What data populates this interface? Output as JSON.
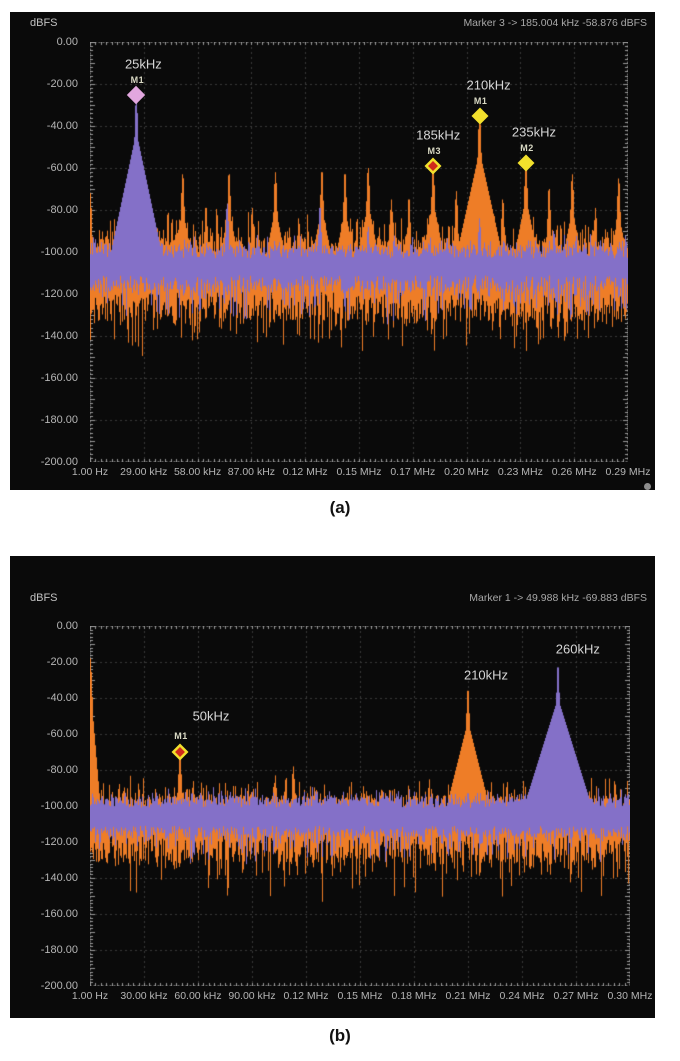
{
  "figure": {
    "background": "#ffffff",
    "panel_background": "#0a0a0a",
    "grid_color": "#3a3a3a",
    "border_color": "#6a6a6a",
    "tick_color": "#989898"
  },
  "marker_styles": {
    "pink": {
      "outer": "#e2a7df",
      "outer_size": 13
    },
    "yellow": {
      "outer": "#f2e02c",
      "outer_size": 12
    },
    "red-yellow": {
      "outer": "#f2e02c",
      "outer_size": 12,
      "inner": "#cf2a1b",
      "inner_size": 7
    }
  },
  "chart_data": [
    {
      "type": "line",
      "subtype": "fft-spectrum",
      "caption": "(a)",
      "ylabel": "dBFS",
      "marker_readout": "Marker 3 -> 185.004 kHz -58.876 dBFS",
      "ylim": [
        -200,
        0
      ],
      "y_tick_step_db": 20,
      "y_tick_labels": [
        "0.00",
        "-20.00",
        "-40.00",
        "-60.00",
        "-80.00",
        "-100.00",
        "-120.00",
        "-140.00",
        "-160.00",
        "-180.00",
        "-200.00"
      ],
      "x_tick_labels": [
        "1.00 Hz",
        "29.00 kHz",
        "58.00 kHz",
        "87.00 kHz",
        "0.12 MHz",
        "0.15 MHz",
        "0.17 MHz",
        "0.20 MHz",
        "0.23 MHz",
        "0.26 MHz",
        "0.29 MHz"
      ],
      "freq_span_khz": 290,
      "grid": true,
      "series": [
        {
          "name": "spectrum-trace-orange",
          "color": "#ee7d27",
          "noise": {
            "top_db": -97,
            "top_jitter_db": 4,
            "spike_db": 14,
            "bottom_db": -126,
            "bottom_jitter_db": 7,
            "deep_db": 18
          },
          "peaks_khz_db": [
            [
              0.2,
              -72,
              25,
              12
            ],
            [
              25,
              -86
            ],
            [
              37.5,
              -90
            ],
            [
              50,
              -63
            ],
            [
              62.5,
              -79
            ],
            [
              75,
              -63
            ],
            [
              87.5,
              -79
            ],
            [
              100,
              -62
            ],
            [
              112.5,
              -84
            ],
            [
              125,
              -62
            ],
            [
              137.5,
              -63
            ],
            [
              150,
              -60
            ],
            [
              162.5,
              -75
            ],
            [
              172,
              -75
            ],
            [
              185,
              -58.9
            ],
            [
              197.5,
              -71
            ],
            [
              210,
              -35,
              25,
              4
            ],
            [
              222.5,
              -75
            ],
            [
              235,
              -57
            ],
            [
              247.5,
              -70
            ],
            [
              260,
              -63
            ],
            [
              272.5,
              -79
            ],
            [
              285,
              -65
            ]
          ]
        },
        {
          "name": "spectrum-trace-purple",
          "color": "#8470c8",
          "noise": {
            "top_db": -100,
            "top_jitter_db": 3,
            "spike_db": 6,
            "bottom_db": -115,
            "bottom_jitter_db": 4,
            "deep_db": 16
          },
          "peaks_khz_db": [
            [
              2,
              -93
            ],
            [
              25,
              -26,
              28,
              4.2
            ],
            [
              74,
              -77
            ],
            [
              124,
              -79
            ],
            [
              150,
              -88
            ],
            [
              210,
              -84
            ],
            [
              250,
              -90
            ]
          ]
        }
      ],
      "markers": [
        {
          "id": "M1",
          "freq_label": "25kHz",
          "freq_khz": 25,
          "level_db": -25,
          "style": "pink",
          "label_dx": 7
        },
        {
          "id": "M3",
          "freq_label": "185kHz",
          "freq_khz": 185,
          "level_db": -58.9,
          "style": "red-yellow",
          "label_dx": 5
        },
        {
          "id": "M1",
          "freq_label": "210kHz",
          "freq_khz": 210,
          "level_db": -35,
          "style": "yellow",
          "label_dx": 9
        },
        {
          "id": "M2",
          "freq_label": "235kHz",
          "freq_khz": 235,
          "level_db": -57.5,
          "style": "yellow",
          "label_dx": 8
        }
      ],
      "free_labels": []
    },
    {
      "type": "line",
      "subtype": "fft-spectrum",
      "caption": "(b)",
      "ylabel": "dBFS",
      "marker_readout": "Marker 1 -> 49.988 kHz -69.883 dBFS",
      "ylim": [
        -200,
        0
      ],
      "y_tick_step_db": 20,
      "y_tick_labels": [
        "0.00",
        "-20.00",
        "-40.00",
        "-60.00",
        "-80.00",
        "-100.00",
        "-120.00",
        "-140.00",
        "-160.00",
        "-180.00",
        "-200.00"
      ],
      "x_tick_labels": [
        "1.00 Hz",
        "30.00 kHz",
        "60.00 kHz",
        "90.00 kHz",
        "0.12 MHz",
        "0.15 MHz",
        "0.18 MHz",
        "0.21 MHz",
        "0.24 MHz",
        "0.27 MHz",
        "0.30 MHz"
      ],
      "freq_span_khz": 300,
      "grid": true,
      "series": [
        {
          "name": "spectrum-trace-orange",
          "color": "#ee7d27",
          "noise": {
            "top_db": -98,
            "top_jitter_db": 4,
            "spike_db": 12,
            "bottom_db": -124,
            "bottom_jitter_db": 8,
            "deep_db": 22
          },
          "peaks_khz_db": [
            [
              0.2,
              -18,
              25,
              12
            ],
            [
              50,
              -69.9
            ],
            [
              103,
              -83
            ],
            [
              113,
              -78
            ],
            [
              133,
              -92
            ],
            [
              152,
              -89
            ],
            [
              178,
              -95
            ],
            [
              210,
              -36,
              25,
              4
            ],
            [
              260,
              -96
            ]
          ]
        },
        {
          "name": "spectrum-trace-purple",
          "color": "#8470c8",
          "noise": {
            "top_db": -98,
            "top_jitter_db": 3,
            "spike_db": 6,
            "bottom_db": -114,
            "bottom_jitter_db": 3,
            "deep_db": 16
          },
          "peaks_khz_db": [
            [
              210,
              -93
            ],
            [
              240,
              -96
            ],
            [
              260,
              -23,
              28,
              3.2
            ]
          ]
        }
      ],
      "markers": [
        {
          "id": "M1",
          "freq_label": "50kHz",
          "freq_khz": 50,
          "level_db": -69.9,
          "style": "red-yellow",
          "label_dx": 31
        }
      ],
      "free_labels": [
        {
          "text": "210kHz",
          "freq_khz": 220,
          "level_db": -27
        },
        {
          "text": "260kHz",
          "freq_khz": 271,
          "level_db": -13
        }
      ]
    }
  ]
}
